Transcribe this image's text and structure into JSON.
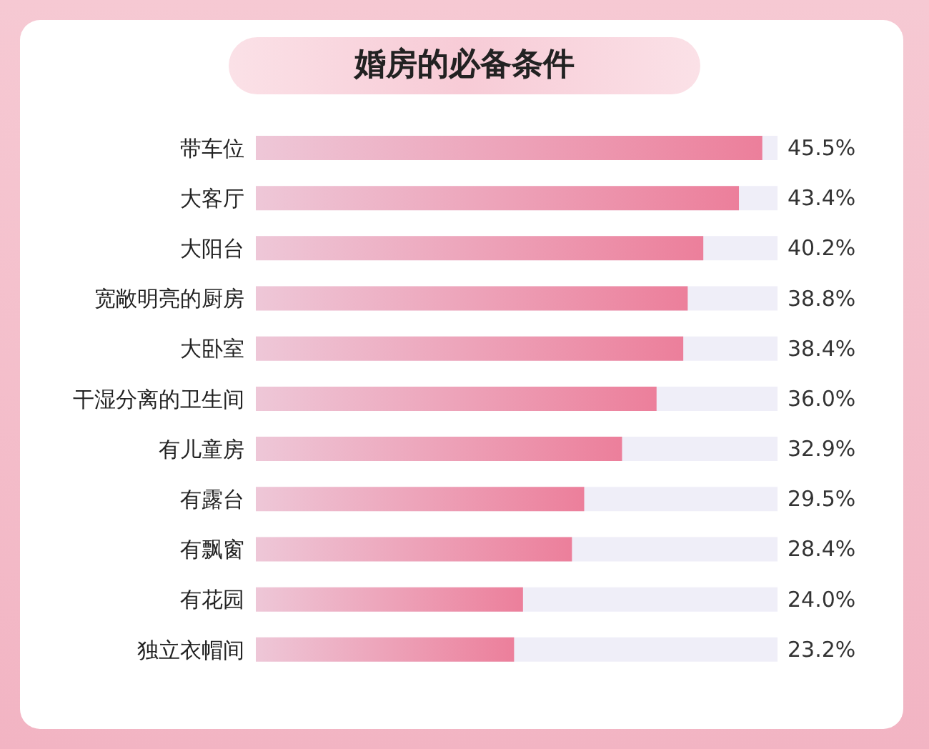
{
  "chart_data": {
    "type": "bar",
    "orientation": "horizontal",
    "title": "婚房的必备条件",
    "categories": [
      "带车位",
      "大客厅",
      "大阳台",
      "宽敞明亮的厨房",
      "大卧室",
      "干湿分离的卫生间",
      "有儿童房",
      "有露台",
      "有飘窗",
      "有花园",
      "独立衣帽间"
    ],
    "values": [
      45.5,
      43.4,
      40.2,
      38.8,
      38.4,
      36.0,
      32.9,
      29.5,
      28.4,
      24.0,
      23.2
    ],
    "value_labels": [
      "45.5%",
      "43.4%",
      "40.2%",
      "38.8%",
      "38.4%",
      "36.0%",
      "32.9%",
      "29.5%",
      "28.4%",
      "24.0%",
      "23.2%"
    ],
    "color": "#ec7f9b"
  }
}
